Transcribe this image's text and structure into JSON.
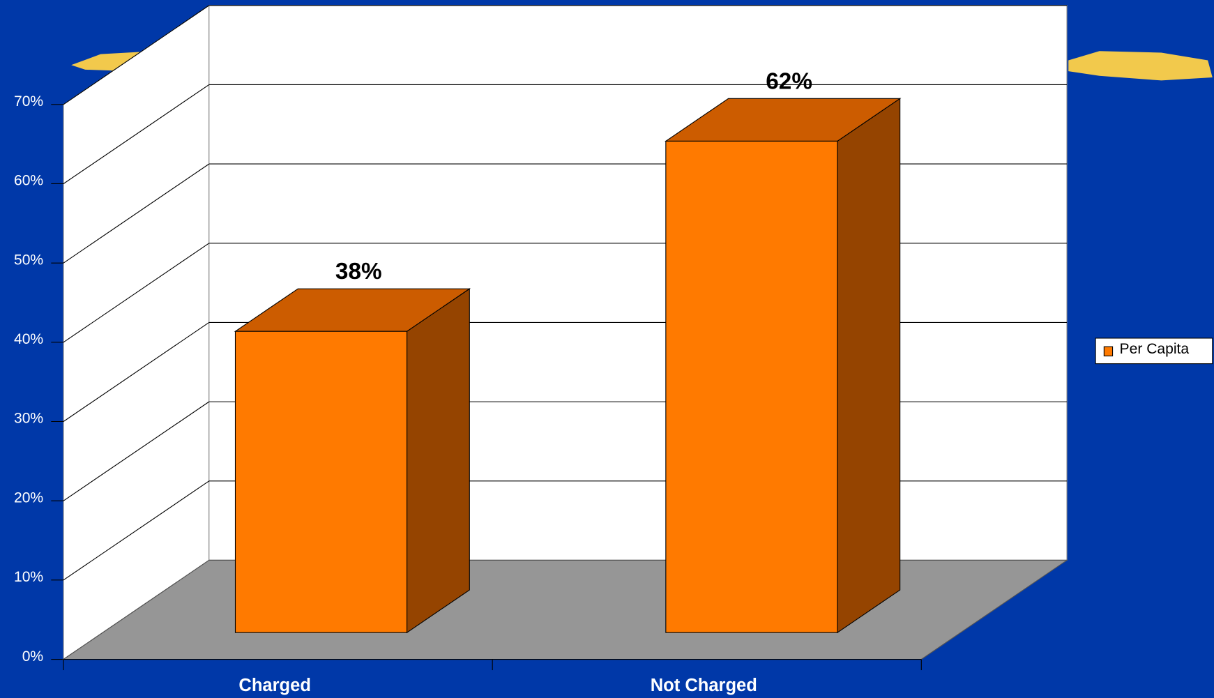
{
  "chart_data": {
    "type": "bar3d",
    "categories": [
      "Charged",
      "Not Charged"
    ],
    "series": [
      {
        "name": "Per Capita",
        "color": "#ff7a00",
        "values": [
          38,
          62
        ],
        "value_labels": [
          "38%",
          "62%"
        ]
      }
    ],
    "ylim": [
      0,
      70
    ],
    "yticks": [
      {
        "value": 0,
        "label": "0%"
      },
      {
        "value": 10,
        "label": "10%"
      },
      {
        "value": 20,
        "label": "20%"
      },
      {
        "value": 30,
        "label": "30%"
      },
      {
        "value": 40,
        "label": "40%"
      },
      {
        "value": 50,
        "label": "50%"
      },
      {
        "value": 60,
        "label": "60%"
      },
      {
        "value": 70,
        "label": "70%"
      }
    ],
    "grid": true,
    "legend": "right"
  }
}
